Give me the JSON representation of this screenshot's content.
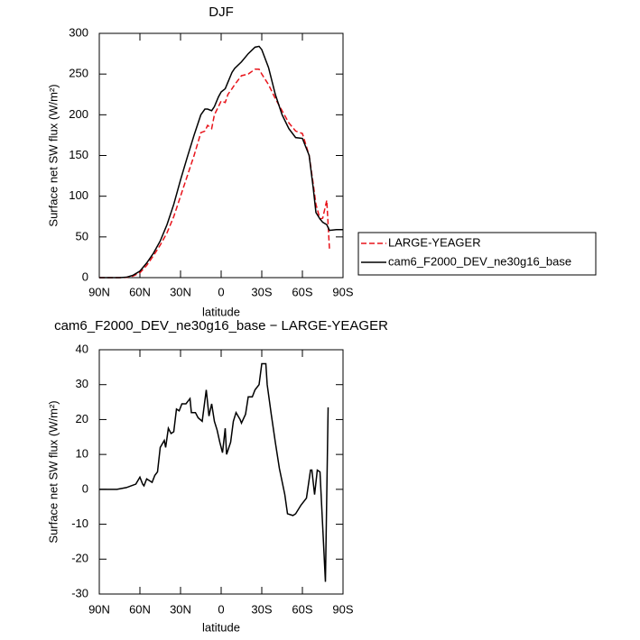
{
  "chart_data": [
    {
      "type": "line",
      "title": "DJF",
      "xlabel": "latitude",
      "ylabel": "Surface net SW flux (W/m²)",
      "x": [
        90,
        85,
        80,
        75,
        70,
        65,
        60,
        55,
        50,
        45,
        40,
        35,
        30,
        25,
        20,
        15,
        12,
        10,
        7,
        5,
        2,
        0,
        -3,
        -5,
        -8,
        -10,
        -15,
        -20,
        -25,
        -28,
        -30,
        -35,
        -40,
        -45,
        -50,
        -55,
        -60,
        -65,
        -68,
        -70,
        -73,
        -75,
        -78,
        -80,
        -85,
        -90
      ],
      "series": [
        {
          "name": "LARGE-YEAGER",
          "color": "#e8141b",
          "dashed": true,
          "values": [
            0,
            0,
            0,
            0,
            0.3,
            2,
            6,
            15,
            27,
            40,
            55,
            75,
            100,
            125,
            150,
            178,
            180,
            187,
            183,
            200,
            210,
            217,
            215,
            225,
            232,
            237,
            248,
            250,
            256,
            256,
            250,
            237,
            220,
            205,
            190,
            180,
            177,
            150,
            115,
            90,
            72,
            73,
            95,
            35,
            null,
            null
          ]
        },
        {
          "name": "cam6_F2000_DEV_ne30g16_base",
          "color": "#000000",
          "dashed": false,
          "values": [
            0,
            0,
            0,
            0,
            0.5,
            3,
            8,
            18,
            30,
            45,
            65,
            90,
            120,
            148,
            175,
            200,
            207,
            207,
            205,
            210,
            222,
            228,
            232,
            240,
            252,
            257,
            265,
            275,
            283,
            284,
            280,
            258,
            225,
            200,
            183,
            172,
            171,
            150,
            110,
            80,
            72,
            68,
            65,
            58,
            59,
            59
          ]
        }
      ],
      "xlim": [
        90,
        -90
      ],
      "xticks": [
        {
          "value": 90,
          "label": "90N"
        },
        {
          "value": 60,
          "label": "60N"
        },
        {
          "value": 30,
          "label": "30N"
        },
        0,
        {
          "value": -30,
          "label": "30S"
        },
        {
          "value": -60,
          "label": "60S"
        },
        {
          "value": -90,
          "label": "90S"
        }
      ],
      "ylim": [
        0,
        300
      ],
      "yticks": [
        0,
        50,
        100,
        150,
        200,
        250,
        300
      ],
      "legend": "right"
    },
    {
      "type": "line",
      "title": "cam6_F2000_DEV_ne30g16_base − LARGE-YEAGER",
      "xlabel": "latitude",
      "ylabel": "Surface net SW flux (W/m²)",
      "x": [
        90,
        77,
        70,
        63,
        60,
        58,
        57,
        55,
        51,
        49,
        47,
        45,
        42,
        41,
        39,
        37,
        35,
        33,
        31,
        29,
        26,
        23,
        22,
        19,
        17,
        14,
        11,
        9,
        7,
        5,
        3,
        1,
        -1,
        -3,
        -4,
        -7,
        -9,
        -11,
        -14,
        -15,
        -18,
        -20,
        -23,
        -25,
        -28,
        -30,
        -33,
        -34,
        -37,
        -40,
        -43,
        -47,
        -49,
        -53,
        -55,
        -59,
        -63,
        -66,
        -67,
        -69,
        -71,
        -73,
        -77,
        -79
      ],
      "series": [
        {
          "name": "cam6_F2000_DEV_ne30g16_base − LARGE-YEAGER",
          "color": "#000000",
          "dashed": false,
          "values": [
            0,
            0,
            0.5,
            1.5,
            3.5,
            1.5,
            1,
            3,
            2,
            4,
            5,
            12,
            14,
            12,
            17.5,
            16,
            16.5,
            23,
            22.5,
            24.5,
            24.5,
            26,
            22,
            22,
            20.5,
            19.5,
            28.5,
            21,
            24.5,
            19.5,
            17,
            13.5,
            10.5,
            17.5,
            10,
            13.5,
            19.5,
            22,
            20,
            19,
            21.5,
            26.5,
            26.5,
            28.5,
            30,
            36,
            36,
            30,
            21.5,
            13.5,
            6,
            -1.5,
            -7,
            -7.5,
            -7,
            -4.5,
            -2.5,
            5.5,
            5.5,
            -1.5,
            5.5,
            5,
            -26.5,
            23.5
          ]
        }
      ],
      "xlim": [
        90,
        -90
      ],
      "xticks": [
        {
          "value": 90,
          "label": "90N"
        },
        {
          "value": 60,
          "label": "60N"
        },
        {
          "value": 30,
          "label": "30N"
        },
        0,
        {
          "value": -30,
          "label": "30S"
        },
        {
          "value": -60,
          "label": "60S"
        },
        {
          "value": -90,
          "label": "90S"
        }
      ],
      "ylim": [
        -30,
        40
      ],
      "yticks": [
        -30,
        -20,
        -10,
        0,
        10,
        20,
        30,
        40
      ]
    }
  ]
}
